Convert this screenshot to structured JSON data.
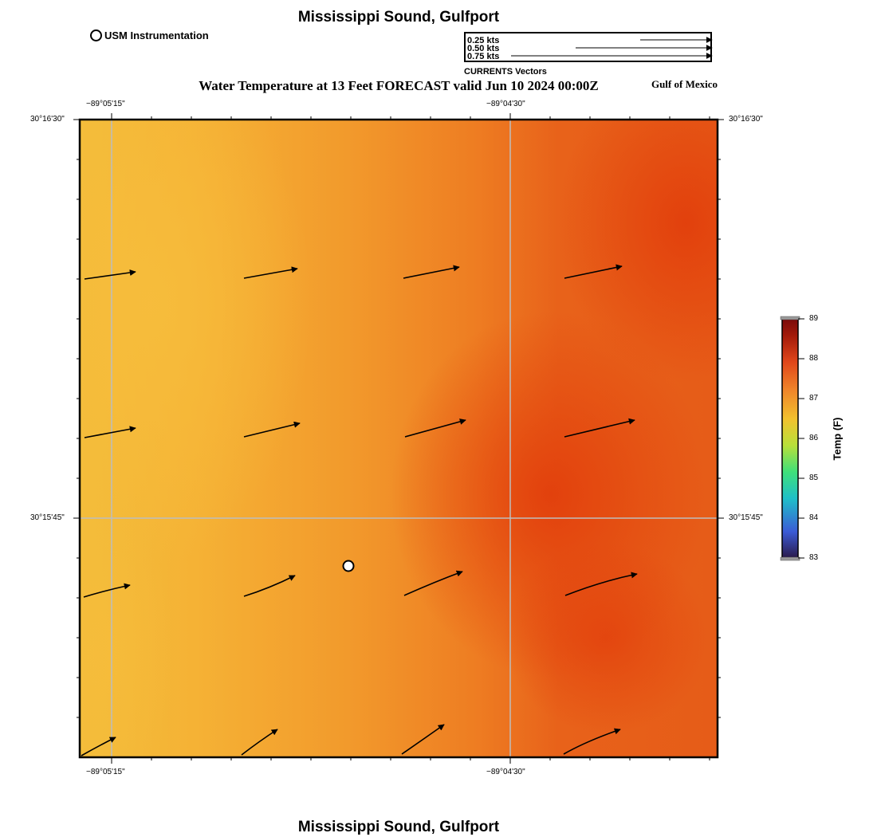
{
  "title": "Mississippi Sound, Gulfport",
  "subtitle": "Water Temperature at 13 Feet FORECAST valid Jun 10 2024 00:00Z",
  "region_label": "Gulf of Mexico",
  "station_legend": {
    "label": "USM Instrumentation",
    "icon": "open-circle-icon"
  },
  "currents_legend": {
    "caption": "CURRENTS Vectors",
    "entries": [
      {
        "label": "0.25 kts",
        "speed": 0.25
      },
      {
        "label": "0.50 kts",
        "speed": 0.5
      },
      {
        "label": "0.75 kts",
        "speed": 0.75
      }
    ]
  },
  "map": {
    "lon_labels": [
      "−89°05'15\"",
      "−89°04'30\""
    ],
    "lat_labels": [
      "30°16'30\"",
      "30°15'45\""
    ],
    "station": {
      "name": "USM Instrumentation",
      "icon": "open-circle-icon"
    }
  },
  "colorbar": {
    "title": "Temp (F)",
    "min": 83,
    "max": 89,
    "tick_labels": [
      "89",
      "88",
      "87",
      "86",
      "85",
      "84",
      "83"
    ],
    "colors": [
      "#2a1a4a",
      "#3b5bd6",
      "#1fc0c8",
      "#3fe07a",
      "#b8e03a",
      "#f2c22e",
      "#f0862a",
      "#e0461a",
      "#a31a0a",
      "#7a0a0a"
    ]
  },
  "field": {
    "colors": {
      "cool": "#f5ba38",
      "mid": "#f08a26",
      "warm": "#e34a10"
    }
  }
}
